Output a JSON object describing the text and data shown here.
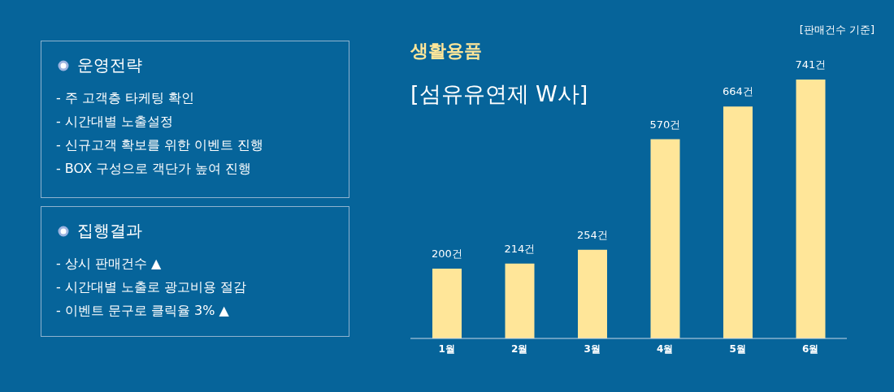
{
  "chart_data": {
    "type": "bar",
    "title": "생활용품",
    "subtitle": "[섬유유연제 W사]",
    "categories": [
      "1월",
      "2월",
      "3월",
      "4월",
      "5월",
      "6월"
    ],
    "values": [
      200,
      214,
      254,
      570,
      664,
      741
    ],
    "value_labels": [
      "200건",
      "214건",
      "254건",
      "570건",
      "664건",
      "741건"
    ],
    "color": "#ffe699",
    "annotations": [
      "운영전략",
      "- 주 고객층 타케팅 확인",
      "- 시간대별 노출설정",
      "- 신규고객 확보를 위한 이벤트 진행",
      "- BOX 구성으로 객단가 높여 진행",
      "집행결과",
      "- 상시 판매건수 ▲",
      "- 시간대별 노출로 광고비용 절감",
      "- 이벤트 문구로 클릭율 3% ▲",
      "[판매건수 기준]"
    ]
  }
}
